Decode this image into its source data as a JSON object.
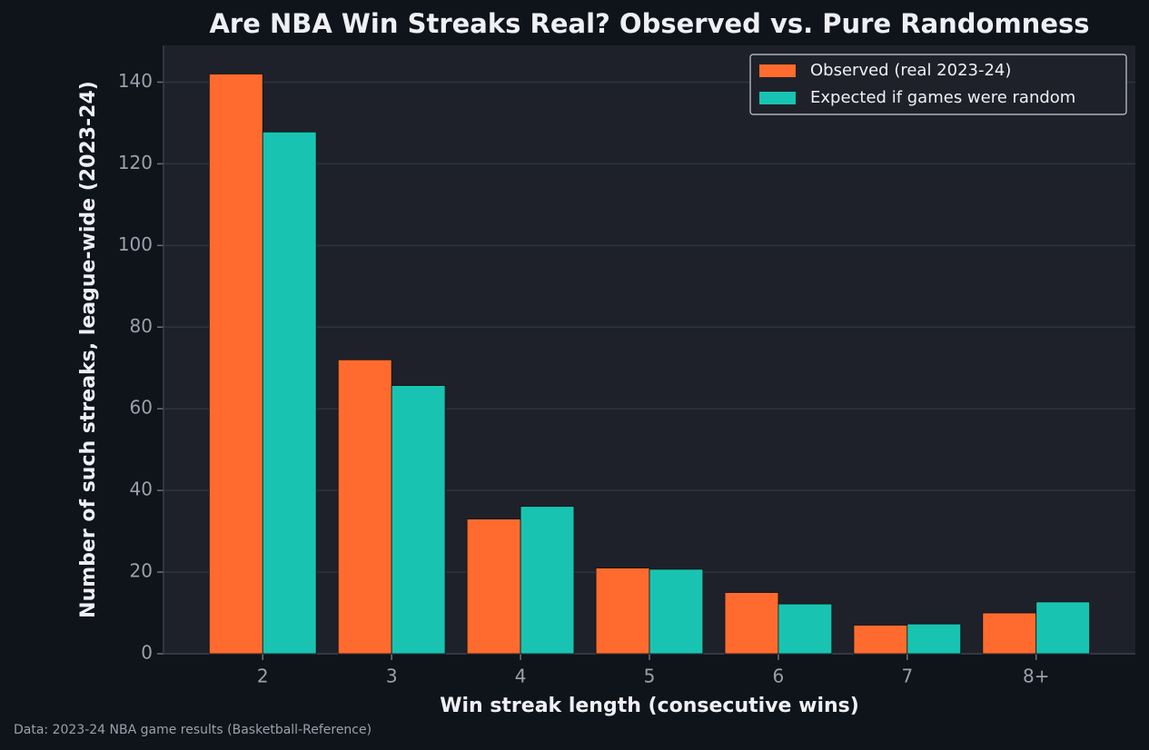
{
  "chart_data": {
    "type": "bar",
    "title": "Are NBA Win Streaks Real? Observed vs. Pure Randomness",
    "xlabel": "Win streak length (consecutive wins)",
    "ylabel": "Number of such streaks, league-wide (2023-24)",
    "caption": "Data: 2023-24 NBA game results (Basketball-Reference)",
    "categories": [
      "2",
      "3",
      "4",
      "5",
      "6",
      "7",
      "8+"
    ],
    "series": [
      {
        "name": "Observed (real 2023-24)",
        "color": "#ff6b2e",
        "values": [
          142,
          72,
          33,
          21,
          15,
          7,
          10
        ]
      },
      {
        "name": "Expected if games were random",
        "color": "#19c3b2",
        "values": [
          127.8,
          65.7,
          36.1,
          20.7,
          12.2,
          7.3,
          12.7
        ]
      }
    ],
    "ylim": [
      0,
      149
    ],
    "yticks": [
      0,
      20,
      40,
      60,
      80,
      100,
      120,
      140
    ],
    "grid": true,
    "legend": "upper right"
  }
}
